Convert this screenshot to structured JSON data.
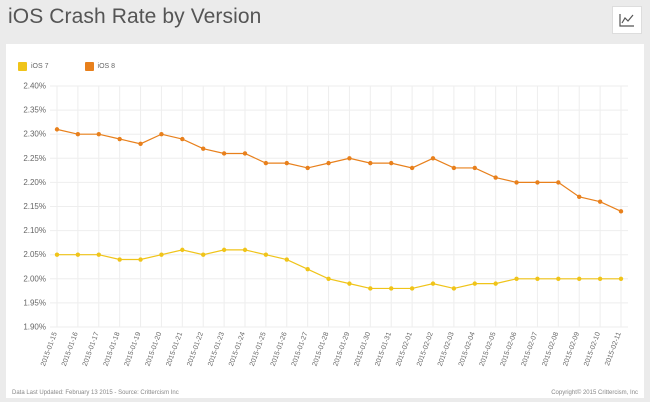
{
  "header": {
    "title": "iOS Crash Rate by Version",
    "chart_icon": "line-chart-icon"
  },
  "footer": {
    "left": "Data Last Updated: February 13 2015 - Source: Crittercism Inc",
    "right": "Copyright© 2015 Crittercism, Inc"
  },
  "colors": {
    "ios7": "#f0c419",
    "ios8": "#e8801c",
    "grid": "#eeeeee",
    "axis_text": "#666666"
  },
  "chart_data": {
    "type": "line",
    "title": "iOS Crash Rate by Version",
    "xlabel": "",
    "ylabel": "",
    "legend_position": "top-left",
    "grid": true,
    "ylim": [
      1.9,
      2.4
    ],
    "yticks": [
      "1.90%",
      "1.95%",
      "2.00%",
      "2.05%",
      "2.10%",
      "2.15%",
      "2.20%",
      "2.25%",
      "2.30%",
      "2.35%",
      "2.40%"
    ],
    "x": [
      "2015-01-15",
      "2015-01-16",
      "2015-01-17",
      "2015-01-18",
      "2015-01-19",
      "2015-01-20",
      "2015-01-21",
      "2015-01-22",
      "2015-01-23",
      "2015-01-24",
      "2015-01-25",
      "2015-01-26",
      "2015-01-27",
      "2015-01-28",
      "2015-01-29",
      "2015-01-30",
      "2015-01-31",
      "2015-02-01",
      "2015-02-02",
      "2015-02-03",
      "2015-02-04",
      "2015-02-05",
      "2015-02-06",
      "2015-02-07",
      "2015-02-08",
      "2015-02-09",
      "2015-02-10",
      "2015-02-11"
    ],
    "series": [
      {
        "name": "iOS 7",
        "color": "#f0c419",
        "values": [
          2.05,
          2.05,
          2.05,
          2.04,
          2.04,
          2.05,
          2.06,
          2.05,
          2.06,
          2.06,
          2.05,
          2.04,
          2.02,
          2.0,
          1.99,
          1.98,
          1.98,
          1.98,
          1.99,
          1.98,
          1.99,
          1.99,
          2.0,
          2.0,
          2.0,
          2.0,
          2.0,
          2.0
        ]
      },
      {
        "name": "iOS 8",
        "color": "#e8801c",
        "values": [
          2.31,
          2.3,
          2.3,
          2.29,
          2.28,
          2.3,
          2.29,
          2.27,
          2.26,
          2.26,
          2.24,
          2.24,
          2.23,
          2.24,
          2.25,
          2.24,
          2.24,
          2.23,
          2.25,
          2.23,
          2.23,
          2.21,
          2.2,
          2.2,
          2.2,
          2.17,
          2.16,
          2.14
        ]
      }
    ]
  }
}
